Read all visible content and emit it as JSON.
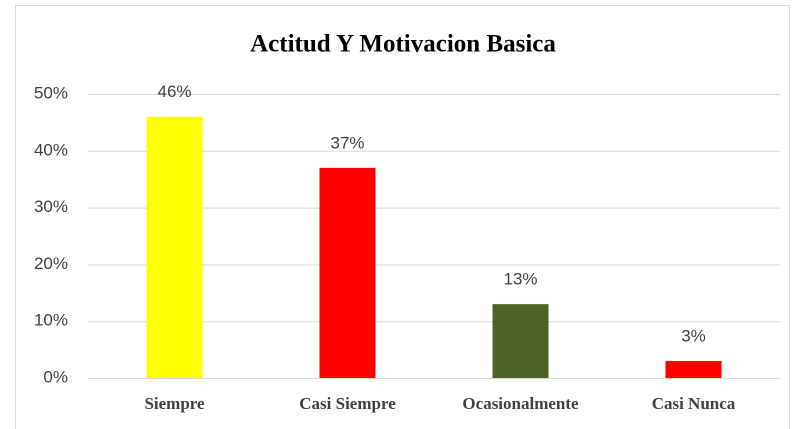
{
  "chart_data": {
    "type": "bar",
    "title": "Actitud Y Motivacion Basica",
    "categories": [
      "Siempre",
      "Casi Siempre",
      "Ocasionalmente",
      "Casi Nunca"
    ],
    "values": [
      46,
      37,
      13,
      3
    ],
    "value_labels": [
      "46%",
      "37%",
      "13%",
      "3%"
    ],
    "colors": [
      "#ffff00",
      "#ff0000",
      "#4f6228",
      "#ff0000"
    ],
    "ylim": [
      0,
      50
    ],
    "yticks": [
      {
        "value": 0,
        "label": "0%"
      },
      {
        "value": 10,
        "label": "10%"
      },
      {
        "value": 20,
        "label": "20%"
      },
      {
        "value": 30,
        "label": "30%"
      },
      {
        "value": 40,
        "label": "40%"
      },
      {
        "value": 50,
        "label": "50%"
      }
    ],
    "grid": true
  }
}
